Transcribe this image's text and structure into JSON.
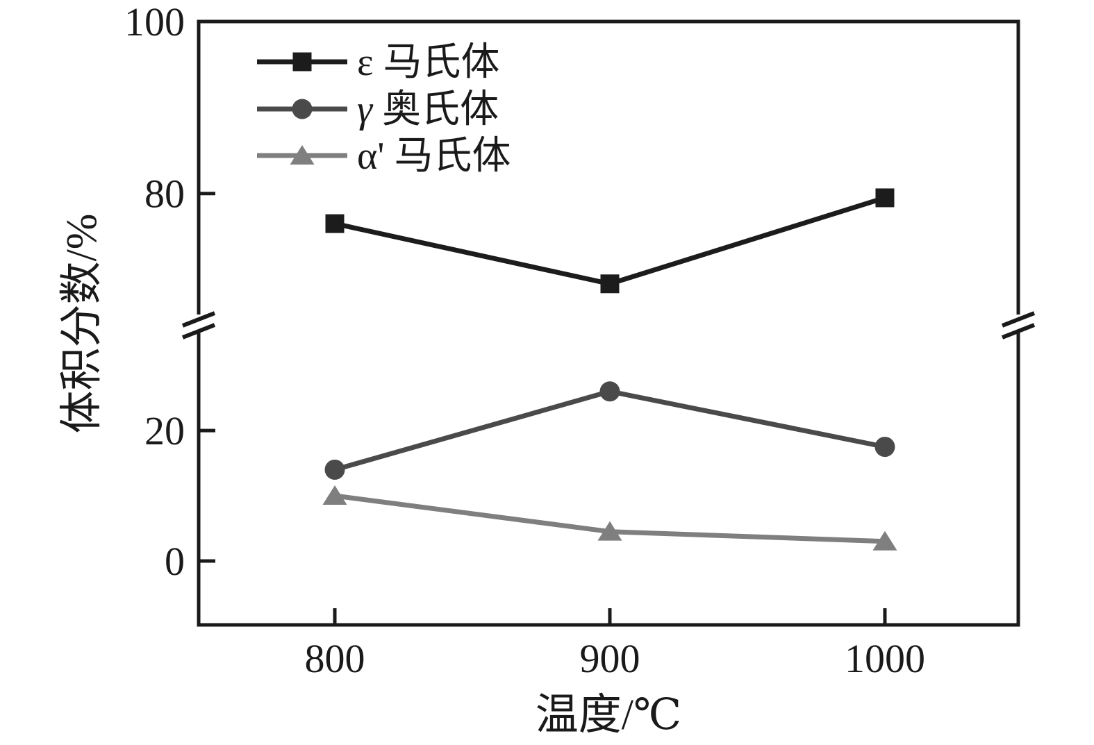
{
  "chart_data": {
    "type": "line",
    "title": "",
    "xlabel": "温度/℃",
    "ylabel": "体积分数/%",
    "x": [
      800,
      900,
      1000
    ],
    "x_ticks": [
      800,
      900,
      1000
    ],
    "x_tick_labels": [
      "800",
      "900",
      "1000"
    ],
    "xlim": [
      750.5,
      1048.5
    ],
    "y_axis_broken": true,
    "y_break_omitted_range": [
      36.3,
      64.8
    ],
    "y_segments": [
      {
        "range": [
          -9.8,
          36.3
        ],
        "ticks": [
          0,
          20
        ],
        "tick_labels": [
          "0",
          "20"
        ]
      },
      {
        "range": [
          64.8,
          100
        ],
        "ticks": [
          80,
          100
        ],
        "tick_labels": [
          "80",
          "100"
        ]
      }
    ],
    "grid": false,
    "legend_position": "upper-left",
    "axis_color": "#1a1a1a",
    "background_color": "#ffffff",
    "series": [
      {
        "name": "ε 马氏体",
        "symbol": "ε",
        "symbol_italic": false,
        "label": "马氏体",
        "marker": "square",
        "color": "#1c1c1c",
        "values": [
          76.5,
          69.5,
          79.5
        ]
      },
      {
        "name": "γ 奥氏体",
        "symbol": "γ",
        "symbol_italic": true,
        "label": "奥氏体",
        "marker": "circle",
        "color": "#4a4a4a",
        "values": [
          14,
          26,
          17.5
        ]
      },
      {
        "name": "α' 马氏体",
        "symbol": "α'",
        "symbol_italic": false,
        "label": "马氏体",
        "marker": "triangle",
        "color": "#7f7f7f",
        "values": [
          10,
          4.5,
          3
        ]
      }
    ]
  }
}
